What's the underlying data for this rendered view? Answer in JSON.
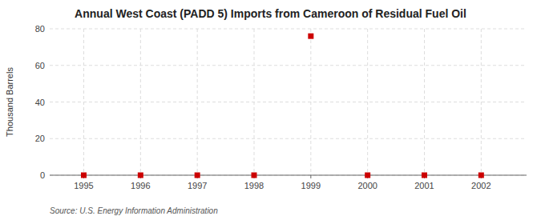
{
  "chart_data": {
    "type": "scatter",
    "title": "Annual West Coast (PADD 5) Imports from Cameroon of Residual Fuel Oil",
    "ylabel": "Thousand Barrels",
    "annotations": [
      "Source: U.S. Energy Information Administration"
    ],
    "x": [
      1995,
      1996,
      1997,
      1998,
      1999,
      2000,
      2001,
      2002
    ],
    "values": [
      0,
      0,
      0,
      0,
      76,
      0,
      0,
      0
    ],
    "color": "#cc0000",
    "marker": "square",
    "xlim": [
      1994.4,
      2002.8
    ],
    "ylim": [
      0,
      80
    ],
    "xticks": [
      1995,
      1996,
      1997,
      1998,
      1999,
      2000,
      2001,
      2002
    ],
    "yticks": [
      0,
      20,
      40,
      60,
      80
    ],
    "grid": true
  }
}
